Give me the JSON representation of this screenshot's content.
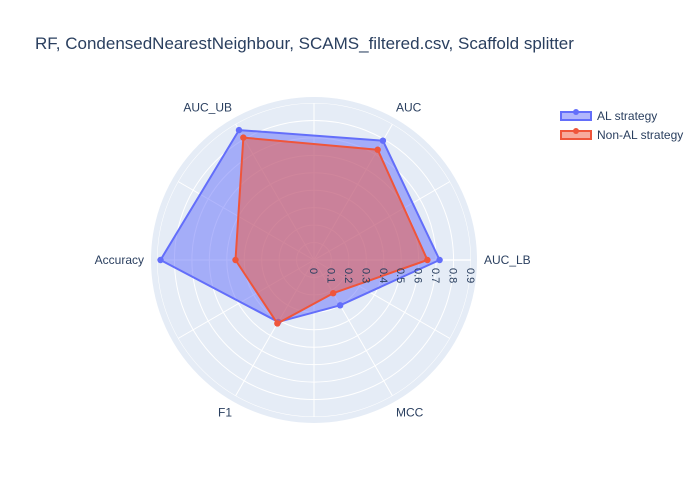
{
  "chart_data": {
    "type": "radar",
    "title": "RF, CondensedNearestNeighbour, SCAMS_filtered.csv, Scaffold splitter",
    "categories": [
      "AUC_LB",
      "AUC",
      "AUC_UB",
      "Accuracy",
      "F1",
      "MCC"
    ],
    "radial_range": [
      0,
      0.9
    ],
    "radial_ticks": [
      "0",
      "0.1",
      "0.2",
      "0.3",
      "0.4",
      "0.5",
      "0.6",
      "0.7",
      "0.8",
      "0.9"
    ],
    "series": [
      {
        "name": "AL strategy",
        "color": "#636efa",
        "values": [
          0.72,
          0.79,
          0.86,
          0.88,
          0.41,
          0.3
        ]
      },
      {
        "name": "Non-AL strategy",
        "color": "#ef553b",
        "values": [
          0.65,
          0.73,
          0.81,
          0.45,
          0.42,
          0.22
        ]
      }
    ],
    "legend_position": "top-right",
    "grid": true
  }
}
